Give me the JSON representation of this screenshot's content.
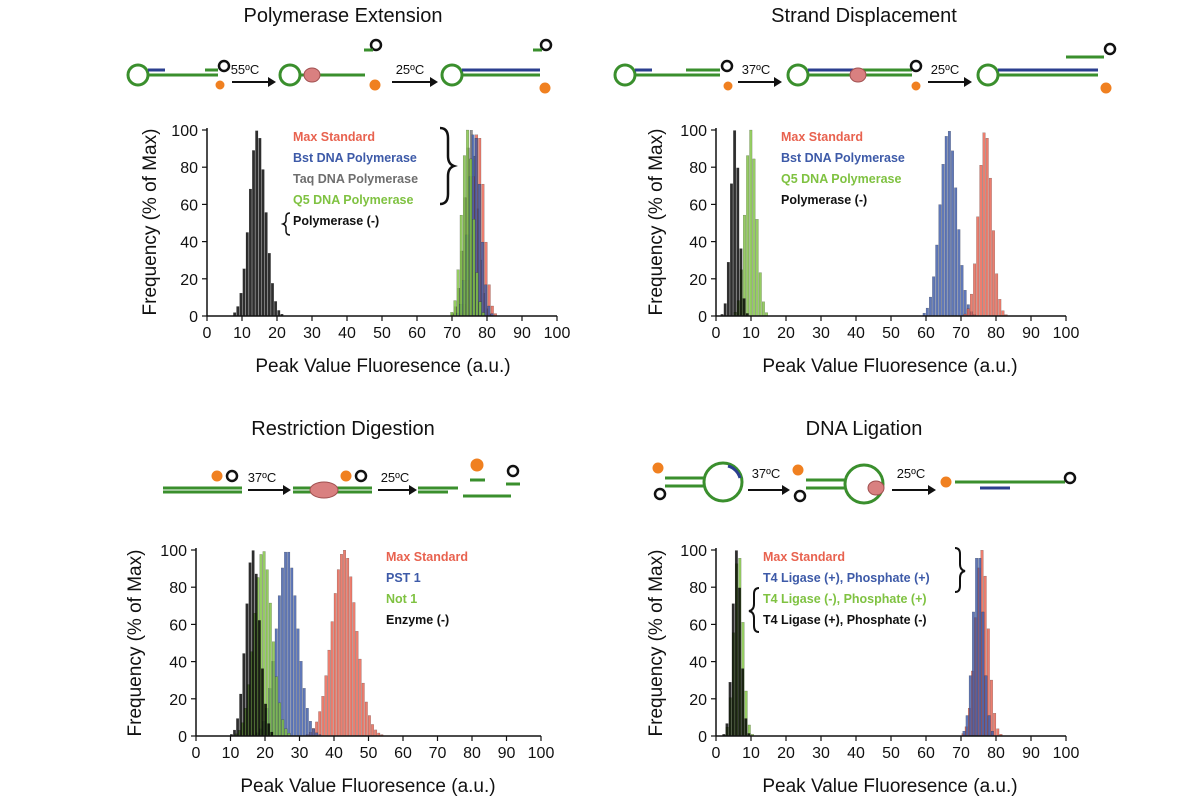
{
  "chart_data": [
    {
      "type": "bar",
      "title": "Polymerase Extension",
      "xlabel": "Peak Value Fluoresence (a.u.)",
      "ylabel": "Frequency (% of Max)",
      "xlim": [
        0,
        100
      ],
      "ylim": [
        0,
        100
      ],
      "xticks": [
        0,
        10,
        20,
        30,
        40,
        50,
        60,
        70,
        80,
        90,
        100
      ],
      "yticks": [
        0,
        20,
        40,
        60,
        80,
        100
      ],
      "schematic_labels": [
        "55ºC",
        "25ºC"
      ],
      "series": [
        {
          "name": "Max Standard",
          "color": "#e8624f",
          "mean": 77.5,
          "sd": 1.7
        },
        {
          "name": "Bst DNA Polymerase",
          "color": "#3d5aa8",
          "mean": 76.5,
          "sd": 1.7
        },
        {
          "name": "Taq DNA Polymerase",
          "color": "#7a7a7a",
          "mean": 75.5,
          "sd": 1.8
        },
        {
          "name": "Q5 DNA Polymerase",
          "color": "#7fc241",
          "mean": 74.5,
          "sd": 1.6
        },
        {
          "name": "Polymerase (-)",
          "color": "#000000",
          "mean": 14.5,
          "sd": 2.3
        }
      ]
    },
    {
      "type": "bar",
      "title": "Strand Displacement",
      "xlabel": "Peak Value Fluoresence (a.u.)",
      "ylabel": "Frequency (% of Max)",
      "xlim": [
        0,
        100
      ],
      "ylim": [
        0,
        100
      ],
      "xticks": [
        0,
        10,
        20,
        30,
        40,
        50,
        60,
        70,
        80,
        90,
        100
      ],
      "yticks": [
        0,
        20,
        40,
        60,
        80,
        100
      ],
      "schematic_labels": [
        "37ºC",
        "25ºC"
      ],
      "series": [
        {
          "name": "Max Standard",
          "color": "#e8624f",
          "mean": 77.0,
          "sd": 1.9
        },
        {
          "name": "Bst DNA Polymerase",
          "color": "#3d5aa8",
          "mean": 66.5,
          "sd": 2.4
        },
        {
          "name": "Q5 DNA Polymerase",
          "color": "#7fc241",
          "mean": 10.0,
          "sd": 1.6
        },
        {
          "name": "Polymerase (-)",
          "color": "#000000",
          "mean": 5.5,
          "sd": 1.2
        }
      ]
    },
    {
      "type": "bar",
      "title": "Restriction Digestion",
      "xlabel": "Peak Value Fluoresence (a.u.)",
      "ylabel": "Frequency (% of Max)",
      "xlim": [
        0,
        100
      ],
      "ylim": [
        0,
        100
      ],
      "xticks": [
        0,
        10,
        20,
        30,
        40,
        50,
        60,
        70,
        80,
        90,
        100
      ],
      "yticks": [
        0,
        20,
        40,
        60,
        80,
        100
      ],
      "schematic_labels": [
        "37ºC",
        "25ºC"
      ],
      "series": [
        {
          "name": "Max Standard",
          "color": "#e8624f",
          "mean": 43.0,
          "sd": 3.5
        },
        {
          "name": "PST 1",
          "color": "#3d5aa8",
          "mean": 26.5,
          "sd": 3.0
        },
        {
          "name": "Not 1",
          "color": "#7fc241",
          "mean": 19.5,
          "sd": 2.6
        },
        {
          "name": "Enzyme (-)",
          "color": "#000000",
          "mean": 16.5,
          "sd": 2.0
        }
      ]
    },
    {
      "type": "bar",
      "title": "DNA Ligation",
      "xlabel": "Peak Value Fluoresence (a.u.)",
      "ylabel": "Frequency (% of Max)",
      "xlim": [
        0,
        100
      ],
      "ylim": [
        0,
        100
      ],
      "xticks": [
        0,
        10,
        20,
        30,
        40,
        50,
        60,
        70,
        80,
        90,
        100
      ],
      "yticks": [
        0,
        20,
        40,
        60,
        80,
        100
      ],
      "schematic_labels": [
        "37ºC",
        "25ºC"
      ],
      "series": [
        {
          "name": "Max Standard",
          "color": "#e8624f",
          "mean": 76.0,
          "sd": 1.8
        },
        {
          "name": "T4 Ligase (+), Phosphate (+)",
          "color": "#3d5aa8",
          "mean": 75.0,
          "sd": 1.5
        },
        {
          "name": "T4 Ligase (-), Phosphate (+)",
          "color": "#7fc241",
          "mean": 6.5,
          "sd": 1.3
        },
        {
          "name": "T4 Ligase (+), Phosphate (-)",
          "color": "#000000",
          "mean": 6.0,
          "sd": 1.2
        }
      ]
    }
  ]
}
